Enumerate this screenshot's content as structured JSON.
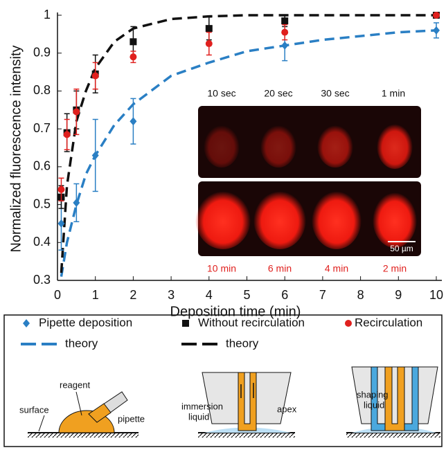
{
  "chart_data": {
    "type": "scatter",
    "xlabel": "Deposition time (min)",
    "ylabel": "Normalized fluorescence intensity",
    "xlim": [
      0,
      10
    ],
    "ylim": [
      0.3,
      1
    ],
    "xticks": [
      0,
      1,
      2,
      3,
      4,
      5,
      6,
      7,
      8,
      9,
      10
    ],
    "yticks": [
      0.3,
      0.4,
      0.5,
      0.6,
      0.7,
      0.8,
      0.9,
      1
    ],
    "series": [
      {
        "name": "Pipette deposition",
        "color": "#2a7fc4",
        "marker": "diamond",
        "x": [
          0.1,
          0.5,
          1,
          2,
          6,
          10
        ],
        "values": [
          0.45,
          0.505,
          0.63,
          0.72,
          0.92,
          0.96
        ],
        "errors": [
          0.07,
          0.05,
          0.095,
          0.06,
          0.04,
          0.02
        ]
      },
      {
        "name": "Without recirculation",
        "color": "#111111",
        "marker": "square",
        "x": [
          0.1,
          0.25,
          0.5,
          1,
          2,
          4,
          6,
          10
        ],
        "values": [
          0.52,
          0.69,
          0.75,
          0.845,
          0.93,
          0.965,
          0.985,
          1.0
        ],
        "errors": [
          0.03,
          0.05,
          0.05,
          0.05,
          0.04,
          0.03,
          0.015,
          0.005
        ]
      },
      {
        "name": "Recirculation",
        "color": "#e0201e",
        "marker": "circle",
        "x": [
          0.1,
          0.25,
          0.5,
          1,
          2,
          4,
          6,
          10
        ],
        "values": [
          0.54,
          0.685,
          0.745,
          0.84,
          0.89,
          0.925,
          0.955,
          1.0
        ],
        "errors": [
          0.03,
          0.04,
          0.06,
          0.035,
          0.015,
          0.03,
          0.02,
          0.005
        ]
      },
      {
        "name": "theory",
        "color": "#2a7fc4",
        "marker": "dashed-line",
        "x": [
          0.1,
          0.25,
          0.5,
          0.75,
          1,
          1.5,
          2,
          3,
          4,
          5,
          6,
          7,
          8,
          9,
          10
        ],
        "values": [
          0.31,
          0.4,
          0.5,
          0.58,
          0.63,
          0.71,
          0.765,
          0.84,
          0.875,
          0.905,
          0.92,
          0.935,
          0.945,
          0.955,
          0.96
        ]
      },
      {
        "name": "theory",
        "color": "#111111",
        "marker": "dashed-line",
        "x": [
          0.1,
          0.25,
          0.5,
          0.75,
          1,
          1.5,
          2,
          3,
          4,
          5,
          6,
          7,
          8,
          9,
          10
        ],
        "values": [
          0.32,
          0.55,
          0.72,
          0.8,
          0.86,
          0.93,
          0.965,
          0.99,
          0.997,
          1.0,
          1.0,
          1.0,
          1.0,
          1.0,
          1.0
        ]
      }
    ],
    "inset": {
      "top_labels": [
        "10 sec",
        "20 sec",
        "30 sec",
        "1 min"
      ],
      "bottom_labels": [
        "10 min",
        "6 min",
        "4 min",
        "2 min"
      ],
      "scale_bar": "50 µm"
    }
  },
  "diagram": {
    "reagent": "reagent",
    "pipette": "pipette",
    "surface": "surface",
    "immersion": "immersion",
    "liquid": "liquid",
    "apex": "apex",
    "shaping": "shaping",
    "shaping_liquid": "liquid"
  }
}
